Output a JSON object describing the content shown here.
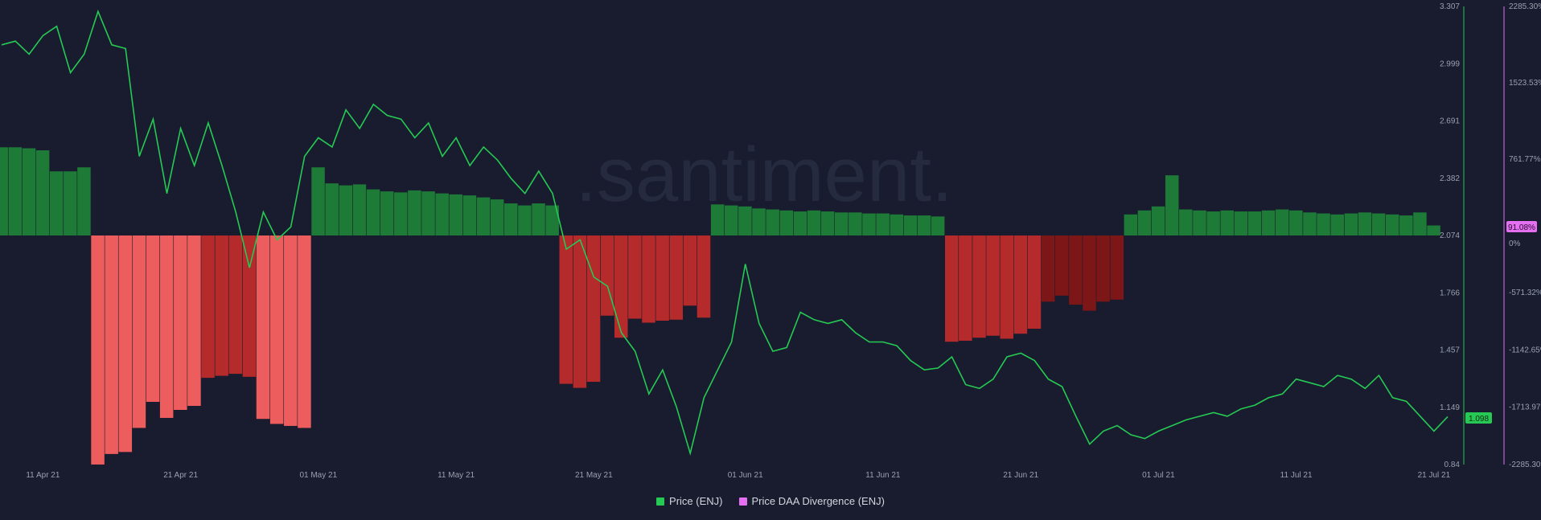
{
  "chart_data": {
    "type": "bar+line",
    "watermark": ".santiment.",
    "x_start": "2021-04-08",
    "x_end": "2021-07-22",
    "x_ticks": [
      "11 Apr 21",
      "21 Apr 21",
      "01 May 21",
      "11 May 21",
      "21 May 21",
      "01 Jun 21",
      "11 Jun 21",
      "21 Jun 21",
      "01 Jul 21",
      "11 Jul 21",
      "21 Jul 21"
    ],
    "y_left": {
      "label": "Price (ENJ)",
      "min": 0.84,
      "max": 3.307,
      "ticks": [
        "3.307",
        "2.999",
        "2.691",
        "2.382",
        "2.074",
        "1.766",
        "1.457",
        "1.149",
        "0.84"
      ],
      "color": "#26c953"
    },
    "y_right": {
      "label": "Price DAA Divergence (ENJ)",
      "min": -2285.3,
      "max": 2285.3,
      "ticks": [
        "2285.30%",
        "1523.53%",
        "761.77%",
        "0%",
        "-571.32%",
        "-1142.65%",
        "-1713.97%",
        "-2285.30%"
      ],
      "color": "#e46ff0"
    },
    "last_price": "1.098",
    "last_divergence": "91.08%",
    "colors": {
      "pos": "#1e7a37",
      "neg_strong": "#ee5d5d",
      "neg_med": "#b52a2a",
      "neg_dark": "#7d1717",
      "line": "#26c953"
    },
    "divergence_segments": [
      {
        "start": "2021-04-08",
        "end": "2021-04-11",
        "values": [
          880,
          880,
          870,
          850
        ],
        "color": "pos"
      },
      {
        "start": "2021-04-12",
        "end": "2021-04-14",
        "values": [
          640,
          640,
          680
        ],
        "color": "pos"
      },
      {
        "start": "2021-04-15",
        "end": "2021-04-22",
        "values": [
          -2285,
          -2180,
          -2160,
          -1920,
          -1660,
          -1820,
          -1740,
          -1700
        ],
        "color": "neg_strong"
      },
      {
        "start": "2021-04-23",
        "end": "2021-04-26",
        "values": [
          -1420,
          -1400,
          -1380,
          -1410
        ],
        "color": "neg_med"
      },
      {
        "start": "2021-04-27",
        "end": "2021-04-30",
        "values": [
          -1830,
          -1880,
          -1900,
          -1920
        ],
        "color": "neg_strong"
      },
      {
        "start": "2021-05-01",
        "end": "2021-05-18",
        "values": [
          680,
          520,
          500,
          510,
          460,
          440,
          430,
          450,
          440,
          420,
          410,
          400,
          380,
          360,
          320,
          300,
          320,
          300
        ],
        "color": "pos"
      },
      {
        "start": "2021-05-19",
        "end": "2021-05-21",
        "values": [
          -1480,
          -1520,
          -1460
        ],
        "color": "neg_med"
      },
      {
        "start": "2021-05-22",
        "end": "2021-05-29",
        "values": [
          -800,
          -1020,
          -830,
          -870,
          -850,
          -840,
          -700,
          -820
        ],
        "color": "neg_med"
      },
      {
        "start": "2021-05-30",
        "end": "2021-06-15",
        "values": [
          310,
          300,
          290,
          270,
          260,
          250,
          240,
          250,
          240,
          230,
          230,
          220,
          220,
          210,
          200,
          200,
          190
        ],
        "color": "pos"
      },
      {
        "start": "2021-06-16",
        "end": "2021-06-22",
        "values": [
          -1060,
          -1050,
          -1020,
          -1000,
          -1030,
          -980,
          -930
        ],
        "color": "neg_med"
      },
      {
        "start": "2021-06-23",
        "end": "2021-06-28",
        "values": [
          -660,
          -600,
          -690,
          -750,
          -660,
          -640
        ],
        "color": "neg_dark"
      },
      {
        "start": "2021-06-29",
        "end": "2021-07-21",
        "values": [
          210,
          250,
          290,
          600,
          260,
          250,
          240,
          250,
          240,
          240,
          250,
          260,
          250,
          230,
          220,
          210,
          220,
          230,
          220,
          210,
          200,
          230,
          100
        ],
        "color": "pos"
      }
    ],
    "price": [
      [
        "2021-04-08",
        3.1
      ],
      [
        "2021-04-09",
        3.12
      ],
      [
        "2021-04-10",
        3.05
      ],
      [
        "2021-04-11",
        3.15
      ],
      [
        "2021-04-12",
        3.2
      ],
      [
        "2021-04-13",
        2.95
      ],
      [
        "2021-04-14",
        3.05
      ],
      [
        "2021-04-15",
        3.28
      ],
      [
        "2021-04-16",
        3.1
      ],
      [
        "2021-04-17",
        3.08
      ],
      [
        "2021-04-18",
        2.5
      ],
      [
        "2021-04-19",
        2.7
      ],
      [
        "2021-04-20",
        2.3
      ],
      [
        "2021-04-21",
        2.65
      ],
      [
        "2021-04-22",
        2.45
      ],
      [
        "2021-04-23",
        2.68
      ],
      [
        "2021-04-24",
        2.45
      ],
      [
        "2021-04-25",
        2.2
      ],
      [
        "2021-04-26",
        1.9
      ],
      [
        "2021-04-27",
        2.2
      ],
      [
        "2021-04-28",
        2.05
      ],
      [
        "2021-04-29",
        2.12
      ],
      [
        "2021-04-30",
        2.5
      ],
      [
        "2021-05-01",
        2.6
      ],
      [
        "2021-05-02",
        2.55
      ],
      [
        "2021-05-03",
        2.75
      ],
      [
        "2021-05-04",
        2.65
      ],
      [
        "2021-05-05",
        2.78
      ],
      [
        "2021-05-06",
        2.72
      ],
      [
        "2021-05-07",
        2.7
      ],
      [
        "2021-05-08",
        2.6
      ],
      [
        "2021-05-09",
        2.68
      ],
      [
        "2021-05-10",
        2.5
      ],
      [
        "2021-05-11",
        2.6
      ],
      [
        "2021-05-12",
        2.45
      ],
      [
        "2021-05-13",
        2.55
      ],
      [
        "2021-05-14",
        2.48
      ],
      [
        "2021-05-15",
        2.38
      ],
      [
        "2021-05-16",
        2.3
      ],
      [
        "2021-05-17",
        2.42
      ],
      [
        "2021-05-18",
        2.3
      ],
      [
        "2021-05-19",
        2.0
      ],
      [
        "2021-05-20",
        2.05
      ],
      [
        "2021-05-21",
        1.85
      ],
      [
        "2021-05-22",
        1.8
      ],
      [
        "2021-05-23",
        1.55
      ],
      [
        "2021-05-24",
        1.45
      ],
      [
        "2021-05-25",
        1.22
      ],
      [
        "2021-05-26",
        1.35
      ],
      [
        "2021-05-27",
        1.15
      ],
      [
        "2021-05-28",
        0.9
      ],
      [
        "2021-05-29",
        1.2
      ],
      [
        "2021-05-30",
        1.35
      ],
      [
        "2021-05-31",
        1.5
      ],
      [
        "2021-06-01",
        1.92
      ],
      [
        "2021-06-02",
        1.6
      ],
      [
        "2021-06-03",
        1.45
      ],
      [
        "2021-06-04",
        1.47
      ],
      [
        "2021-06-05",
        1.66
      ],
      [
        "2021-06-06",
        1.62
      ],
      [
        "2021-06-07",
        1.6
      ],
      [
        "2021-06-08",
        1.62
      ],
      [
        "2021-06-09",
        1.55
      ],
      [
        "2021-06-10",
        1.5
      ],
      [
        "2021-06-11",
        1.5
      ],
      [
        "2021-06-12",
        1.48
      ],
      [
        "2021-06-13",
        1.4
      ],
      [
        "2021-06-14",
        1.35
      ],
      [
        "2021-06-15",
        1.36
      ],
      [
        "2021-06-16",
        1.42
      ],
      [
        "2021-06-17",
        1.27
      ],
      [
        "2021-06-18",
        1.25
      ],
      [
        "2021-06-19",
        1.3
      ],
      [
        "2021-06-20",
        1.42
      ],
      [
        "2021-06-21",
        1.44
      ],
      [
        "2021-06-22",
        1.4
      ],
      [
        "2021-06-23",
        1.3
      ],
      [
        "2021-06-24",
        1.26
      ],
      [
        "2021-06-25",
        1.1
      ],
      [
        "2021-06-26",
        0.95
      ],
      [
        "2021-06-27",
        1.02
      ],
      [
        "2021-06-28",
        1.05
      ],
      [
        "2021-06-29",
        1.0
      ],
      [
        "2021-06-30",
        0.98
      ],
      [
        "2021-07-01",
        1.02
      ],
      [
        "2021-07-02",
        1.05
      ],
      [
        "2021-07-03",
        1.08
      ],
      [
        "2021-07-04",
        1.1
      ],
      [
        "2021-07-05",
        1.12
      ],
      [
        "2021-07-06",
        1.1
      ],
      [
        "2021-07-07",
        1.14
      ],
      [
        "2021-07-08",
        1.16
      ],
      [
        "2021-07-09",
        1.2
      ],
      [
        "2021-07-10",
        1.22
      ],
      [
        "2021-07-11",
        1.3
      ],
      [
        "2021-07-12",
        1.28
      ],
      [
        "2021-07-13",
        1.26
      ],
      [
        "2021-07-14",
        1.32
      ],
      [
        "2021-07-15",
        1.3
      ],
      [
        "2021-07-16",
        1.25
      ],
      [
        "2021-07-17",
        1.32
      ],
      [
        "2021-07-18",
        1.2
      ],
      [
        "2021-07-19",
        1.18
      ],
      [
        "2021-07-20",
        1.1
      ],
      [
        "2021-07-21",
        1.02
      ],
      [
        "2021-07-22",
        1.098
      ]
    ]
  },
  "legend": [
    {
      "label": "Price (ENJ)",
      "color": "#26c953"
    },
    {
      "label": "Price DAA Divergence (ENJ)",
      "color": "#e46ff0"
    }
  ]
}
